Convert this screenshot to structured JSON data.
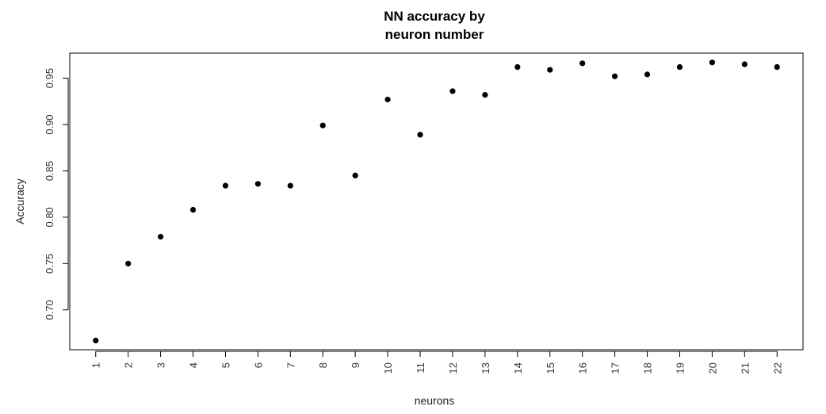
{
  "chart_data": {
    "type": "scatter",
    "title": [
      "NN accuracy by",
      "neuron number"
    ],
    "xlabel": "neurons",
    "ylabel": "Accuracy",
    "x": [
      1,
      2,
      3,
      4,
      5,
      6,
      7,
      8,
      9,
      10,
      11,
      12,
      13,
      14,
      15,
      16,
      17,
      18,
      19,
      20,
      21,
      22
    ],
    "xticks": [
      "1",
      "2",
      "3",
      "4",
      "5",
      "6",
      "7",
      "8",
      "9",
      "10",
      "11",
      "12",
      "13",
      "14",
      "15",
      "16",
      "17",
      "18",
      "19",
      "20",
      "21",
      "22"
    ],
    "y": [
      0.667,
      0.75,
      0.779,
      0.808,
      0.834,
      0.836,
      0.834,
      0.899,
      0.845,
      0.927,
      0.889,
      0.936,
      0.932,
      0.962,
      0.959,
      0.966,
      0.952,
      0.954,
      0.962,
      0.967,
      0.965,
      0.962
    ],
    "yticks": [
      0.7,
      0.75,
      0.8,
      0.85,
      0.9,
      0.95
    ],
    "ytick_labels": [
      "0.70",
      "0.75",
      "0.80",
      "0.85",
      "0.90",
      "0.95"
    ],
    "xlim": [
      0.2,
      22.8
    ],
    "ylim": [
      0.657,
      0.977
    ],
    "grid": false,
    "legend": "none",
    "colors": {
      "points": "#000000",
      "frame": "#000000"
    }
  }
}
